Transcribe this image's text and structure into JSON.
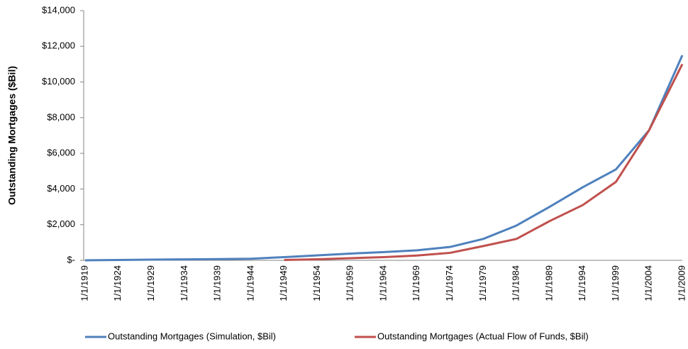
{
  "chart_data": {
    "type": "line",
    "y_label": "Outstanding Mortgages ($Bil)",
    "categories": [
      "1/1/1919",
      "1/1/1924",
      "1/1/1929",
      "1/1/1934",
      "1/1/1939",
      "1/1/1944",
      "1/1/1949",
      "1/1/1954",
      "1/1/1959",
      "1/1/1964",
      "1/1/1969",
      "1/1/1974",
      "1/1/1979",
      "1/1/1984",
      "1/1/1989",
      "1/1/1994",
      "1/1/1999",
      "1/1/2004",
      "1/1/2009"
    ],
    "series": [
      {
        "name": "Outstanding Mortgages (Simulation, $Bil)",
        "color": "#4f81bd",
        "values": [
          0,
          20,
          40,
          55,
          70,
          90,
          180,
          280,
          380,
          460,
          560,
          750,
          1200,
          1950,
          3000,
          4100,
          5100,
          7300,
          11500
        ]
      },
      {
        "name": "Outstanding Mortgages (Actual Flow of Funds, $Bil)",
        "color": "#c0504d",
        "values": [
          null,
          null,
          null,
          null,
          null,
          null,
          20,
          60,
          120,
          180,
          270,
          420,
          800,
          1200,
          2200,
          3100,
          4400,
          7300,
          11000
        ]
      }
    ],
    "ylim": [
      0,
      14000
    ],
    "yticks": [
      {
        "value": 0,
        "label": "$-"
      },
      {
        "value": 2000,
        "label": "$2,000"
      },
      {
        "value": 4000,
        "label": "$4,000"
      },
      {
        "value": 6000,
        "label": "$6,000"
      },
      {
        "value": 8000,
        "label": "$8,000"
      },
      {
        "value": 10000,
        "label": "$10,000"
      },
      {
        "value": 12000,
        "label": "$12,000"
      },
      {
        "value": 14000,
        "label": "$14,000"
      }
    ],
    "grid": false,
    "legend": "bottom"
  }
}
